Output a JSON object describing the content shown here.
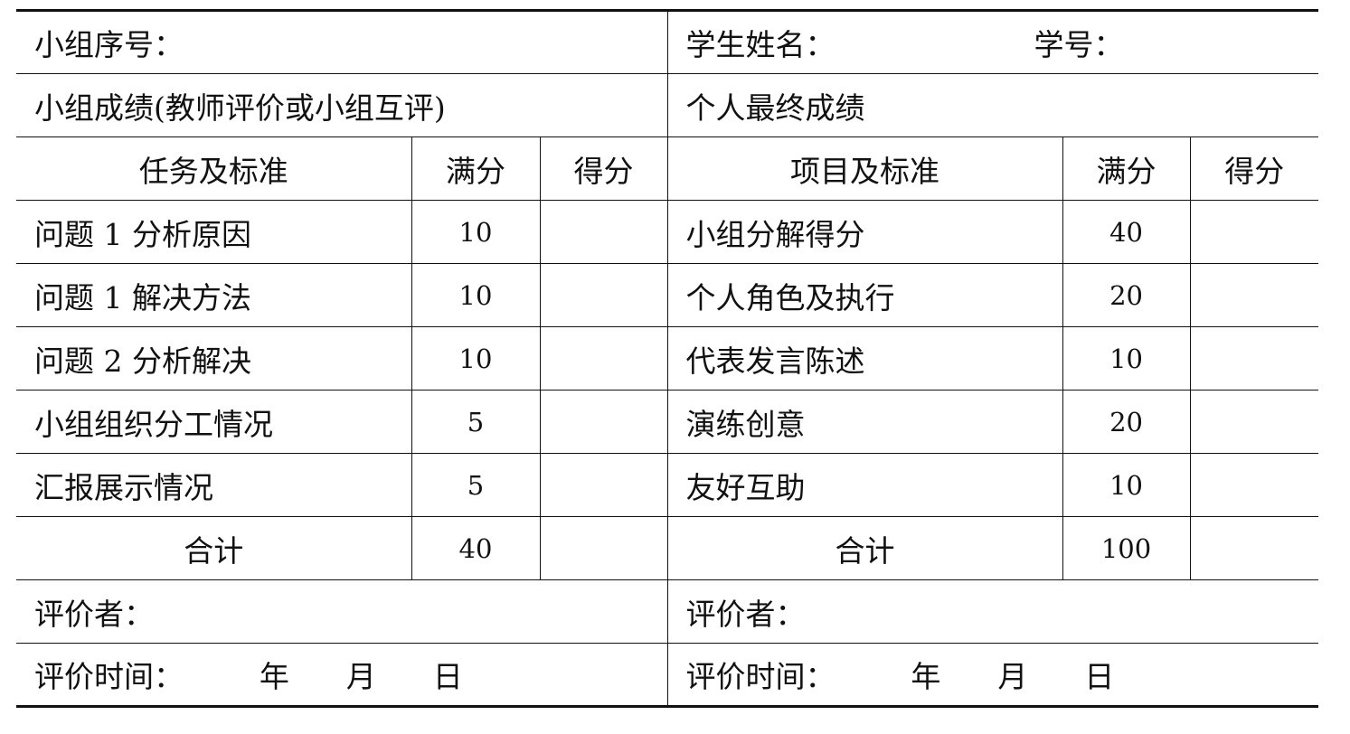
{
  "header": {
    "group_no_label": "小组序号：",
    "student_name_label": "学生姓名：",
    "student_id_label": "学号：",
    "group_score_title": "小组成绩(教师评价或小组互评)",
    "personal_score_title": "个人最终成绩"
  },
  "left": {
    "col_headers": [
      "任务及标准",
      "满分",
      "得分"
    ],
    "rows": [
      {
        "item": "问题 1 分析原因",
        "full": "10",
        "score": ""
      },
      {
        "item": "问题 1 解决方法",
        "full": "10",
        "score": ""
      },
      {
        "item": "问题 2 分析解决",
        "full": "10",
        "score": ""
      },
      {
        "item": "小组组织分工情况",
        "full": "5",
        "score": ""
      },
      {
        "item": "汇报展示情况",
        "full": "5",
        "score": ""
      }
    ],
    "total_label": "合计",
    "total_full": "40",
    "evaluator_label": "评价者：",
    "date_label": "评价时间：        年      月      日"
  },
  "right": {
    "col_headers": [
      "项目及标准",
      "满分",
      "得分"
    ],
    "rows": [
      {
        "item": "小组分解得分",
        "full": "40",
        "score": ""
      },
      {
        "item": "个人角色及执行",
        "full": "20",
        "score": ""
      },
      {
        "item": "代表发言陈述",
        "full": "10",
        "score": ""
      },
      {
        "item": "演练创意",
        "full": "20",
        "score": ""
      },
      {
        "item": "友好互助",
        "full": "10",
        "score": ""
      }
    ],
    "total_label": "合计",
    "total_full": "100",
    "evaluator_label": "评价者：",
    "date_label": "评价时间：        年      月      日"
  }
}
